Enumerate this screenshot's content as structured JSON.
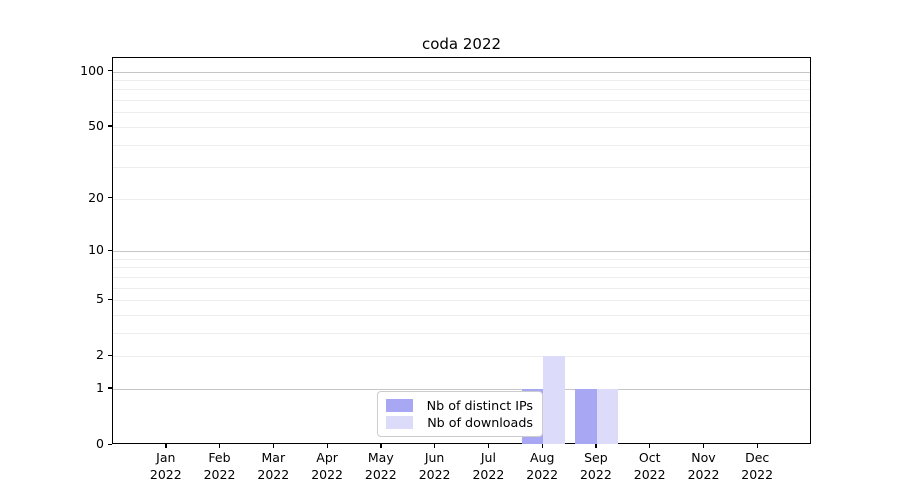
{
  "title": "coda 2022",
  "chart_data": {
    "type": "bar",
    "title": "coda 2022",
    "categories_month": [
      "Jan",
      "Feb",
      "Mar",
      "Apr",
      "May",
      "Jun",
      "Jul",
      "Aug",
      "Sep",
      "Oct",
      "Nov",
      "Dec"
    ],
    "categories_year": "2022",
    "series": [
      {
        "name": "Nb of distinct IPs",
        "color": "#a7a7f4",
        "values": [
          0,
          0,
          0,
          0,
          0,
          0,
          0,
          1,
          1,
          0,
          0,
          0
        ]
      },
      {
        "name": "Nb of downloads",
        "color": "#dcdcfa",
        "values": [
          0,
          0,
          0,
          0,
          0,
          0,
          0,
          2,
          1,
          0,
          0,
          0
        ]
      }
    ],
    "yscale": "log1p",
    "yticks": [
      0,
      1,
      2,
      5,
      10,
      20,
      50,
      100
    ],
    "ylim": [
      0,
      118
    ],
    "xlabel": "",
    "ylabel": "",
    "grid": true,
    "legend_position": "inside-bottom-center"
  },
  "colors": {
    "background": "#ffffff",
    "axis": "#000000",
    "major_grid": "#c6c6c6",
    "minor_grid": "#ededed"
  }
}
